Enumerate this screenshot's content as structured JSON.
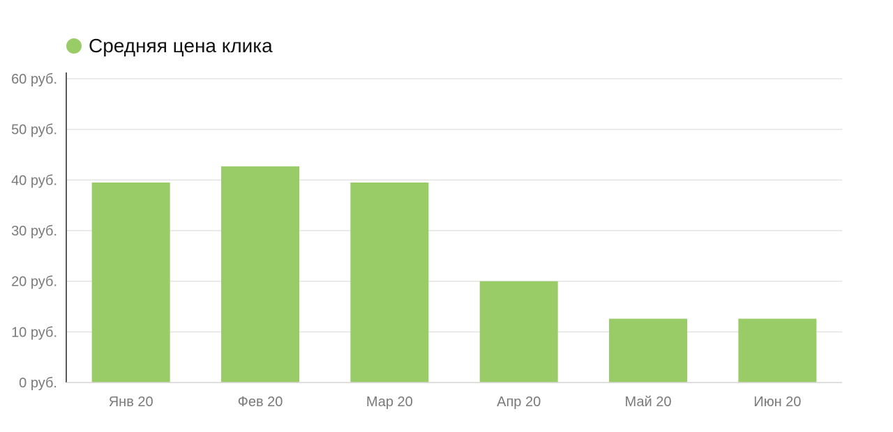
{
  "chart_data": {
    "type": "bar",
    "categories": [
      "Янв 20",
      "Фев 20",
      "Мар 20",
      "Апр 20",
      "Май 20",
      "Июн 20"
    ],
    "series": [
      {
        "name": "Средняя цена клика",
        "values": [
          39.5,
          42.7,
          39.5,
          20.0,
          12.6,
          12.6
        ],
        "color": "#99cc66"
      }
    ],
    "yticks": [
      0,
      10,
      20,
      30,
      40,
      50,
      60
    ],
    "ytick_labels": [
      "0 руб.",
      "10 руб.",
      "20 руб.",
      "30 руб.",
      "40 руб.",
      "50 руб.",
      "60 руб."
    ],
    "ylim": [
      0,
      60
    ],
    "grid": true,
    "legend_position": "top-left"
  }
}
